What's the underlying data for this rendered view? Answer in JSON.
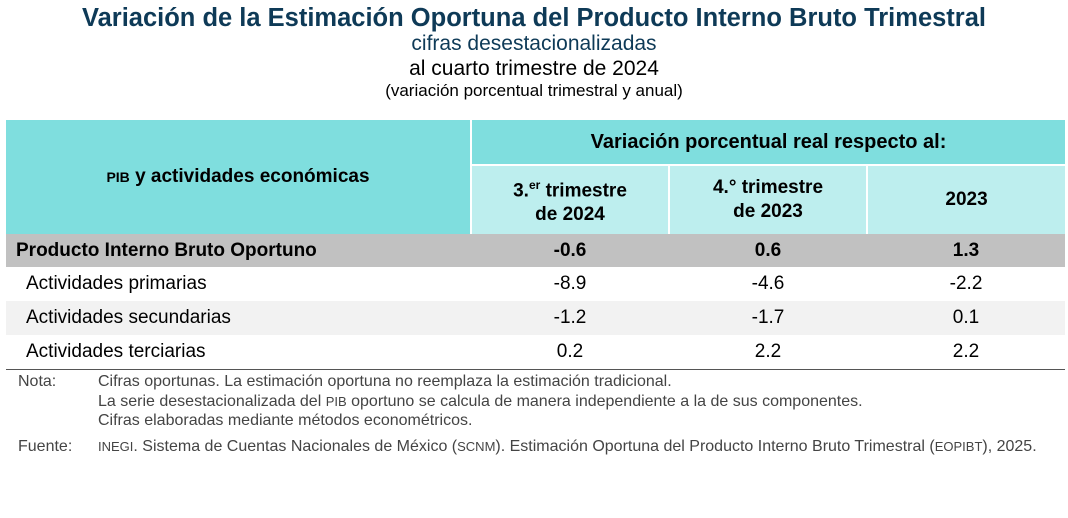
{
  "header": {
    "title": "Variación de la Estimación Oportuna del Producto Interno Bruto Trimestral",
    "subtitle": "cifras desestacionalizadas",
    "period": "al cuarto trimestre de 2024",
    "note": "(variación porcentual trimestral y anual)"
  },
  "table": {
    "left_header_sc": "PIB",
    "left_header_rest": " y actividades económicas",
    "group_header": "Variación porcentual real respecto al:",
    "col1_a": "3.",
    "col1_sup": "er",
    "col1_b": " trimestre",
    "col1_c": "de 2024",
    "col2_a": "4.° trimestre",
    "col2_b": "de 2023",
    "col3": "2023",
    "rows": [
      {
        "label": "Producto Interno Bruto Oportuno",
        "v1": "-0.6",
        "v2": "0.6",
        "v3": "1.3"
      },
      {
        "label": "Actividades primarias",
        "v1": "-8.9",
        "v2": "-4.6",
        "v3": "-2.2"
      },
      {
        "label": "Actividades secundarias",
        "v1": "-1.2",
        "v2": "-1.7",
        "v3": "0.1"
      },
      {
        "label": "Actividades terciarias",
        "v1": "0.2",
        "v2": "2.2",
        "v3": "2.2"
      }
    ]
  },
  "notes": {
    "nota_label": "Nota:",
    "nota_1": "Cifras oportunas. La estimación oportuna no reemplaza la estimación tradicional.",
    "nota_2a": "La serie desestacionalizada del ",
    "nota_2_sc": "PIB",
    "nota_2b": " oportuno se calcula de manera independiente a la de sus componentes.",
    "nota_3": "Cifras elaboradas mediante métodos econométricos.",
    "fuente_label": "Fuente:",
    "fuente_sc1": "INEGI",
    "fuente_a": ". Sistema de Cuentas Nacionales de México (",
    "fuente_sc2": "SCNM",
    "fuente_b": "). Estimación Oportuna del Producto Interno Bruto Trimestral (",
    "fuente_sc3": "EOPIBT",
    "fuente_c": "), 2025."
  },
  "colors": {
    "title": "#0e3a57",
    "header_dark": "#7fdede",
    "header_light": "#bdeeee",
    "pib_row": "#c1c1c1"
  }
}
